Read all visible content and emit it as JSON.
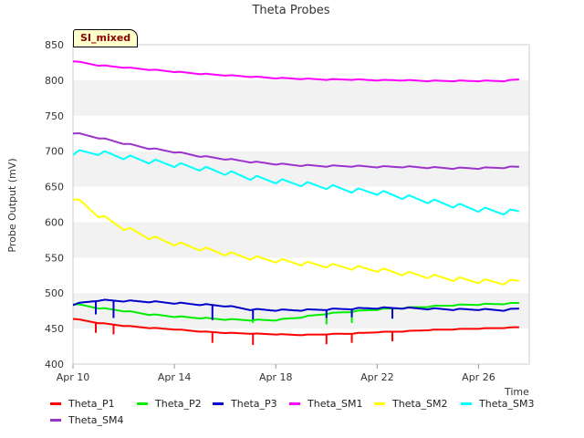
{
  "chart_data": {
    "type": "line",
    "title": "Theta Probes",
    "ylabel": "Probe Output (mV)",
    "xlabel": "Time",
    "annotation": "SI_mixed",
    "ylim": [
      400,
      850
    ],
    "xlim": [
      "2024-04-10",
      "2024-04-28"
    ],
    "yticks": [
      400,
      450,
      500,
      550,
      600,
      650,
      700,
      750,
      800,
      850
    ],
    "xticks": [
      {
        "date": "2024-04-10",
        "label": "Apr 10"
      },
      {
        "date": "2024-04-14",
        "label": "Apr 14"
      },
      {
        "date": "2024-04-18",
        "label": "Apr 18"
      },
      {
        "date": "2024-04-22",
        "label": "Apr 22"
      },
      {
        "date": "2024-04-26",
        "label": "Apr 26"
      }
    ],
    "grid": "alternating horizontal bands",
    "legend_position": "bottom",
    "series": [
      {
        "name": "Theta_P1",
        "color": "#ff0000",
        "points": [
          [
            "2024-04-10",
            464
          ],
          [
            "2024-04-11",
            458
          ],
          [
            "2024-04-12",
            454
          ],
          [
            "2024-04-13",
            451
          ],
          [
            "2024-04-14",
            449
          ],
          [
            "2024-04-15",
            446
          ],
          [
            "2024-04-16",
            444
          ],
          [
            "2024-04-17",
            443
          ],
          [
            "2024-04-18",
            442
          ],
          [
            "2024-04-19",
            441
          ],
          [
            "2024-04-20",
            442
          ],
          [
            "2024-04-21",
            443
          ],
          [
            "2024-04-22",
            445
          ],
          [
            "2024-04-23",
            446
          ],
          [
            "2024-04-24",
            448
          ],
          [
            "2024-04-25",
            449
          ],
          [
            "2024-04-26",
            450
          ],
          [
            "2024-04-27",
            451
          ],
          [
            "2024-04-27.6",
            452
          ]
        ],
        "spikes": [
          [
            "2024-04-10.9",
            444
          ],
          [
            "2024-04-11.6",
            442
          ],
          [
            "2024-04-15.5",
            430
          ],
          [
            "2024-04-17.1",
            427
          ],
          [
            "2024-04-20.0",
            428
          ],
          [
            "2024-04-21.0",
            430
          ],
          [
            "2024-04-22.6",
            432
          ]
        ]
      },
      {
        "name": "Theta_P2",
        "color": "#00ee00",
        "points": [
          [
            "2024-04-10",
            485
          ],
          [
            "2024-04-11",
            479
          ],
          [
            "2024-04-12",
            475
          ],
          [
            "2024-04-13",
            470
          ],
          [
            "2024-04-14",
            467
          ],
          [
            "2024-04-15",
            465
          ],
          [
            "2024-04-16",
            463
          ],
          [
            "2024-04-17",
            462
          ],
          [
            "2024-04-18",
            462
          ],
          [
            "2024-04-19",
            466
          ],
          [
            "2024-04-20",
            471
          ],
          [
            "2024-04-21",
            474
          ],
          [
            "2024-04-22",
            477
          ],
          [
            "2024-04-23",
            479
          ],
          [
            "2024-04-24",
            481
          ],
          [
            "2024-04-25",
            483
          ],
          [
            "2024-04-26",
            484
          ],
          [
            "2024-04-27",
            485
          ],
          [
            "2024-04-27.6",
            486
          ]
        ],
        "spikes": [
          [
            "2024-04-10.9",
            471
          ],
          [
            "2024-04-17.1",
            458
          ],
          [
            "2024-04-20.0",
            456
          ],
          [
            "2024-04-21.0",
            458
          ]
        ]
      },
      {
        "name": "Theta_P3",
        "color": "#0000cc",
        "points": [
          [
            "2024-04-10",
            484
          ],
          [
            "2024-04-11",
            490
          ],
          [
            "2024-04-12",
            489
          ],
          [
            "2024-04-13",
            488
          ],
          [
            "2024-04-14",
            486
          ],
          [
            "2024-04-15",
            484
          ],
          [
            "2024-04-16",
            482
          ],
          [
            "2024-04-17",
            477
          ],
          [
            "2024-04-18",
            476
          ],
          [
            "2024-04-19",
            476
          ],
          [
            "2024-04-20",
            477
          ],
          [
            "2024-04-21",
            478
          ],
          [
            "2024-04-22",
            479
          ],
          [
            "2024-04-23",
            479
          ],
          [
            "2024-04-24",
            478
          ],
          [
            "2024-04-25",
            477
          ],
          [
            "2024-04-26",
            477
          ],
          [
            "2024-04-27",
            476
          ],
          [
            "2024-04-27.6",
            478
          ]
        ],
        "spikes": [
          [
            "2024-04-10.9",
            470
          ],
          [
            "2024-04-11.6",
            465
          ],
          [
            "2024-04-15.5",
            462
          ],
          [
            "2024-04-17.1",
            463
          ],
          [
            "2024-04-20.0",
            465
          ],
          [
            "2024-04-21.0",
            466
          ],
          [
            "2024-04-22.6",
            464
          ]
        ]
      },
      {
        "name": "Theta_SM1",
        "color": "#ff00ff",
        "points": [
          [
            "2024-04-10",
            827
          ],
          [
            "2024-04-11",
            821
          ],
          [
            "2024-04-12",
            818
          ],
          [
            "2024-04-13",
            815
          ],
          [
            "2024-04-14",
            812
          ],
          [
            "2024-04-15",
            809
          ],
          [
            "2024-04-16",
            807
          ],
          [
            "2024-04-17",
            805
          ],
          [
            "2024-04-18",
            803
          ],
          [
            "2024-04-19",
            802
          ],
          [
            "2024-04-20",
            801
          ],
          [
            "2024-04-21",
            801
          ],
          [
            "2024-04-22",
            800
          ],
          [
            "2024-04-23",
            800
          ],
          [
            "2024-04-24",
            799
          ],
          [
            "2024-04-25",
            799
          ],
          [
            "2024-04-26",
            799
          ],
          [
            "2024-04-27",
            799
          ],
          [
            "2024-04-27.6",
            801
          ]
        ],
        "spikes": []
      },
      {
        "name": "Theta_SM2",
        "color": "#ffff00",
        "points": [
          [
            "2024-04-10",
            635
          ],
          [
            "2024-04-11",
            610
          ],
          [
            "2024-04-12",
            592
          ],
          [
            "2024-04-13",
            579
          ],
          [
            "2024-04-14",
            570
          ],
          [
            "2024-04-15",
            563
          ],
          [
            "2024-04-16",
            556
          ],
          [
            "2024-04-17",
            550
          ],
          [
            "2024-04-18",
            546
          ],
          [
            "2024-04-19",
            542
          ],
          [
            "2024-04-20",
            539
          ],
          [
            "2024-04-21",
            536
          ],
          [
            "2024-04-22",
            533
          ],
          [
            "2024-04-23",
            528
          ],
          [
            "2024-04-24",
            524
          ],
          [
            "2024-04-25",
            520
          ],
          [
            "2024-04-26",
            517
          ],
          [
            "2024-04-27",
            515
          ],
          [
            "2024-04-27.6",
            517
          ]
        ],
        "spikes": []
      },
      {
        "name": "Theta_SM3",
        "color": "#00ffff",
        "points": [
          [
            "2024-04-10",
            698
          ],
          [
            "2024-04-11",
            698
          ],
          [
            "2024-04-12",
            692
          ],
          [
            "2024-04-13",
            686
          ],
          [
            "2024-04-14",
            681
          ],
          [
            "2024-04-15",
            676
          ],
          [
            "2024-04-16",
            670
          ],
          [
            "2024-04-17",
            663
          ],
          [
            "2024-04-18",
            658
          ],
          [
            "2024-04-19",
            654
          ],
          [
            "2024-04-20",
            650
          ],
          [
            "2024-04-21",
            645
          ],
          [
            "2024-04-22",
            642
          ],
          [
            "2024-04-23",
            636
          ],
          [
            "2024-04-24",
            630
          ],
          [
            "2024-04-25",
            624
          ],
          [
            "2024-04-26",
            618
          ],
          [
            "2024-04-27",
            614
          ],
          [
            "2024-04-27.6",
            615
          ]
        ],
        "spikes": []
      },
      {
        "name": "Theta_SM4",
        "color": "#9933cc",
        "points": [
          [
            "2024-04-10",
            726
          ],
          [
            "2024-04-11",
            719
          ],
          [
            "2024-04-12",
            711
          ],
          [
            "2024-04-13",
            704
          ],
          [
            "2024-04-14",
            699
          ],
          [
            "2024-04-15",
            693
          ],
          [
            "2024-04-16",
            689
          ],
          [
            "2024-04-17",
            685
          ],
          [
            "2024-04-18",
            682
          ],
          [
            "2024-04-19",
            680
          ],
          [
            "2024-04-20",
            679
          ],
          [
            "2024-04-21",
            679
          ],
          [
            "2024-04-22",
            678
          ],
          [
            "2024-04-23",
            678
          ],
          [
            "2024-04-24",
            677
          ],
          [
            "2024-04-25",
            676
          ],
          [
            "2024-04-26",
            676
          ],
          [
            "2024-04-27",
            677
          ],
          [
            "2024-04-27.6",
            678
          ]
        ],
        "spikes": []
      }
    ]
  }
}
